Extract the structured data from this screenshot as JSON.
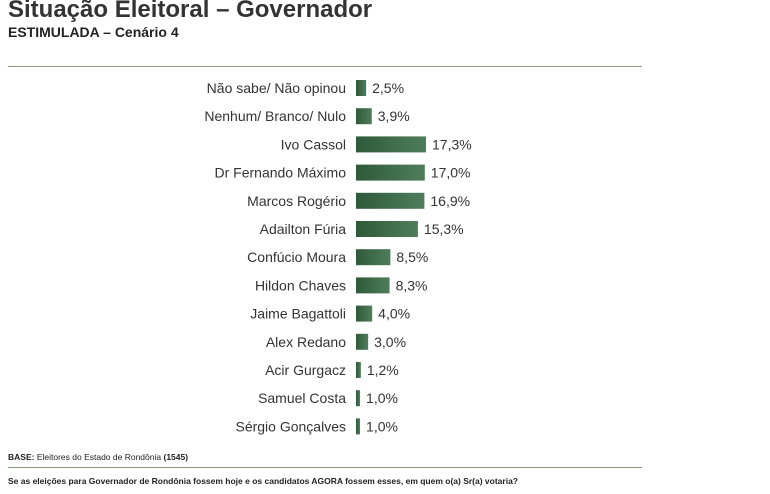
{
  "header": {
    "title": "Situação Eleitoral – Governador",
    "subtitle": "ESTIMULADA – Cenário 4"
  },
  "footer": {
    "base_label": "BASE:",
    "base_text": "Eleitores do Estado de Rondônia",
    "base_count": "(1545)",
    "question": "Se as eleições para Governador de Rondônia fossem hoje e os candidatos AGORA fossem esses, em quem o(a) Sr(a) votaria?"
  },
  "colors": {
    "bar": "#3f6b4b",
    "bar_light": "#6f9677",
    "rule": "#8a9a7c"
  },
  "chart_data": {
    "type": "bar",
    "orientation": "horizontal",
    "categories": [
      "Não sabe/ Não opinou",
      "Nenhum/ Branco/ Nulo",
      "Ivo Cassol",
      "Dr Fernando Máximo",
      "Marcos Rogério",
      "Adailton Fúria",
      "Confúcio Moura",
      "Hildon Chaves",
      "Jaime Bagattoli",
      "Alex Redano",
      "Acir Gurgacz",
      "Samuel Costa",
      "Sérgio Gonçalves"
    ],
    "values": [
      2.5,
      3.9,
      17.3,
      17.0,
      16.9,
      15.3,
      8.5,
      8.3,
      4.0,
      3.0,
      1.2,
      1.0,
      1.0
    ],
    "value_labels": [
      "2,5%",
      "3,9%",
      "17,3%",
      "17,0%",
      "16,9%",
      "15,3%",
      "8,5%",
      "8,3%",
      "4,0%",
      "3,0%",
      "1,2%",
      "1,0%",
      "1,0%"
    ],
    "xlim": [
      0,
      17.3
    ],
    "grid": false,
    "title": "",
    "xlabel": "",
    "ylabel": ""
  }
}
